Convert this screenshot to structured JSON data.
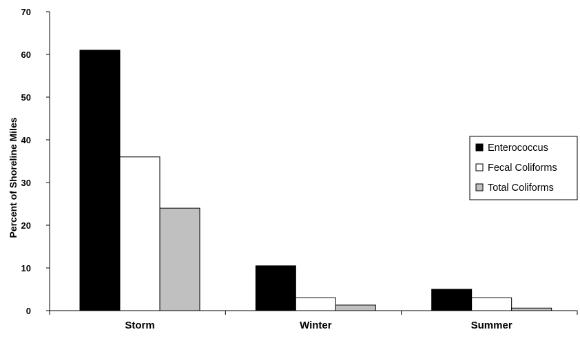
{
  "chart_data": {
    "type": "bar",
    "title": "",
    "xlabel": "",
    "ylabel": "Percent of Shoreline Miles",
    "ylim": [
      0,
      70
    ],
    "yticks": [
      0,
      10,
      20,
      30,
      40,
      50,
      60,
      70
    ],
    "categories": [
      "Storm",
      "Winter",
      "Summer"
    ],
    "series": [
      {
        "name": "Enterococcus",
        "values": [
          61,
          10.5,
          5
        ],
        "color": "#000000"
      },
      {
        "name": "Fecal Coliforms",
        "values": [
          36,
          3,
          3
        ],
        "color": "#ffffff"
      },
      {
        "name": "Total Coliforms",
        "values": [
          24,
          1.3,
          0.6
        ],
        "color": "#c0c0c0"
      }
    ],
    "grid": false,
    "legend": "right"
  }
}
